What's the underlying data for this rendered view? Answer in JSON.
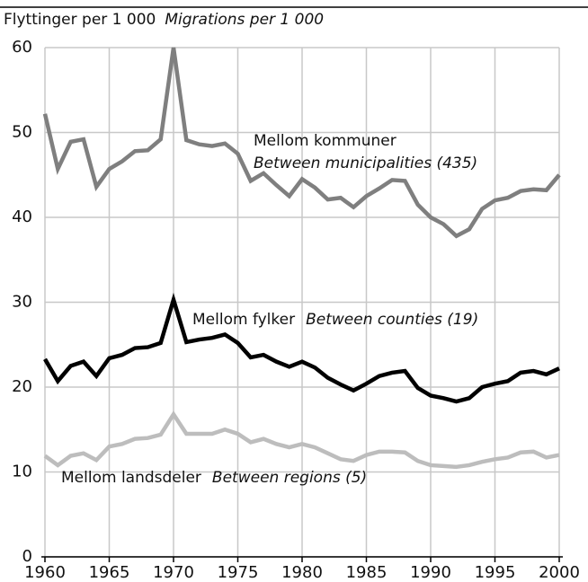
{
  "chart_data": {
    "type": "line",
    "title": "Flyttinger per 1 000",
    "subtitle": "Migrations per 1 000",
    "x": [
      1960,
      1961,
      1962,
      1963,
      1964,
      1965,
      1966,
      1967,
      1968,
      1969,
      1970,
      1971,
      1972,
      1973,
      1974,
      1975,
      1976,
      1977,
      1978,
      1979,
      1980,
      1981,
      1982,
      1983,
      1984,
      1985,
      1986,
      1987,
      1988,
      1989,
      1990,
      1991,
      1992,
      1993,
      1994,
      1995,
      1996,
      1997,
      1998,
      1999,
      2000
    ],
    "xlim": [
      1960,
      2000
    ],
    "xticks": [
      1960,
      1965,
      1970,
      1975,
      1980,
      1985,
      1990,
      1995,
      2000
    ],
    "ylim": [
      0,
      60
    ],
    "yticks": [
      0,
      10,
      20,
      30,
      40,
      50,
      60
    ],
    "grid": true,
    "series": [
      {
        "name": "Mellom kommuner",
        "name_en": "Between municipalities (435)",
        "color": "#7f7f7f",
        "values": [
          52.2,
          45.7,
          48.9,
          49.2,
          43.6,
          45.7,
          46.6,
          47.8,
          47.9,
          49.2,
          60.0,
          49.1,
          48.6,
          48.4,
          48.7,
          47.5,
          44.3,
          45.2,
          43.8,
          42.5,
          44.5,
          43.5,
          42.1,
          42.3,
          41.2,
          42.5,
          43.4,
          44.4,
          44.3,
          41.5,
          40.0,
          39.2,
          37.8,
          38.6,
          41.0,
          42.0,
          42.3,
          43.1,
          43.3,
          43.2,
          45.0
        ]
      },
      {
        "name": "Mellom fylker",
        "name_en": "Between counties (19)",
        "color": "#000000",
        "values": [
          23.3,
          20.7,
          22.5,
          23.0,
          21.3,
          23.4,
          23.8,
          24.6,
          24.7,
          25.2,
          30.3,
          25.3,
          25.6,
          25.8,
          26.2,
          25.2,
          23.5,
          23.8,
          23.0,
          22.4,
          23.0,
          22.3,
          21.1,
          20.3,
          19.6,
          20.4,
          21.3,
          21.7,
          21.9,
          19.9,
          19.0,
          18.7,
          18.3,
          18.7,
          20.0,
          20.4,
          20.7,
          21.7,
          21.9,
          21.5,
          22.2
        ]
      },
      {
        "name": "Mellom landsdeler",
        "name_en": "Between regions (5)",
        "color": "#bdbdbd",
        "values": [
          11.9,
          10.8,
          11.9,
          12.2,
          11.4,
          13.0,
          13.3,
          13.9,
          14.0,
          14.4,
          16.8,
          14.5,
          14.5,
          14.5,
          15.0,
          14.5,
          13.5,
          13.9,
          13.3,
          12.9,
          13.3,
          12.9,
          12.2,
          11.5,
          11.3,
          12.0,
          12.4,
          12.4,
          12.3,
          11.3,
          10.8,
          10.7,
          10.6,
          10.8,
          11.2,
          11.5,
          11.7,
          12.3,
          12.4,
          11.7,
          12.0
        ]
      }
    ]
  }
}
